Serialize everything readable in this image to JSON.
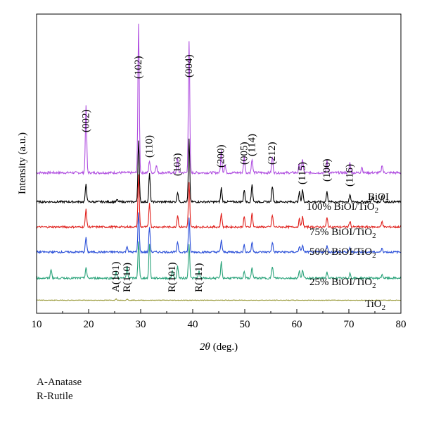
{
  "chart_data": {
    "type": "line",
    "title": "",
    "xlabel_symbol": "2θ",
    "xlabel_unit": "(deg.)",
    "ylabel": "Intensity (a.u.)",
    "xlim": [
      10,
      80
    ],
    "x_ticks": [
      10,
      20,
      30,
      40,
      50,
      60,
      70,
      80
    ],
    "grid": false,
    "series": [
      {
        "name": "BiOI",
        "label_main": "BiOI",
        "label_sub": "",
        "color": "#b04fe0",
        "baseline": 7.0,
        "noise": 0.06,
        "peaks": [
          [
            19.5,
            3.3
          ],
          [
            29.6,
            7.4
          ],
          [
            31.7,
            0.6
          ],
          [
            33.0,
            0.4
          ],
          [
            37.1,
            0.7
          ],
          [
            39.3,
            6.5
          ],
          [
            45.5,
            1.1
          ],
          [
            46.2,
            0.4
          ],
          [
            49.9,
            0.8
          ],
          [
            51.4,
            0.7
          ],
          [
            55.3,
            0.8
          ],
          [
            60.5,
            0.5
          ],
          [
            61.1,
            0.7
          ],
          [
            65.8,
            0.6
          ],
          [
            70.2,
            0.5
          ],
          [
            72.5,
            0.3
          ],
          [
            76.4,
            0.4
          ]
        ]
      },
      {
        "name": "100% BiOI/TiO2",
        "label_main": "100% BiOI/TiO",
        "label_sub": "2",
        "color": "#000000",
        "baseline": 5.55,
        "noise": 0.05,
        "peaks": [
          [
            19.5,
            0.9
          ],
          [
            25.5,
            0.1
          ],
          [
            29.6,
            3.1
          ],
          [
            31.7,
            1.4
          ],
          [
            37.1,
            0.5
          ],
          [
            39.3,
            3.1
          ],
          [
            45.5,
            0.7
          ],
          [
            49.9,
            0.6
          ],
          [
            51.4,
            0.9
          ],
          [
            55.3,
            0.8
          ],
          [
            60.5,
            0.5
          ],
          [
            61.1,
            0.6
          ],
          [
            65.8,
            0.5
          ],
          [
            70.2,
            0.35
          ],
          [
            74.5,
            0.25
          ],
          [
            76.4,
            0.35
          ]
        ]
      },
      {
        "name": "75% BiOI/TiO2",
        "label_main": "75% BiOI/TiO",
        "label_sub": "2",
        "color": "#e0201c",
        "baseline": 4.3,
        "noise": 0.05,
        "peaks": [
          [
            19.5,
            0.9
          ],
          [
            29.6,
            2.6
          ],
          [
            31.7,
            1.2
          ],
          [
            37.1,
            0.6
          ],
          [
            39.3,
            2.2
          ],
          [
            45.5,
            0.7
          ],
          [
            49.9,
            0.5
          ],
          [
            51.4,
            0.7
          ],
          [
            55.3,
            0.6
          ],
          [
            60.5,
            0.4
          ],
          [
            61.1,
            0.5
          ],
          [
            65.8,
            0.45
          ],
          [
            70.2,
            0.3
          ],
          [
            76.4,
            0.3
          ]
        ]
      },
      {
        "name": "50% BiOI/TiO2",
        "label_main": "50% BiOI/TiO",
        "label_sub": "2",
        "color": "#2a4fd8",
        "baseline": 3.05,
        "noise": 0.05,
        "peaks": [
          [
            19.5,
            0.75
          ],
          [
            27.4,
            0.3
          ],
          [
            29.6,
            2.0
          ],
          [
            31.7,
            1.25
          ],
          [
            37.1,
            0.5
          ],
          [
            39.3,
            1.7
          ],
          [
            45.5,
            0.6
          ],
          [
            49.9,
            0.35
          ],
          [
            51.4,
            0.5
          ],
          [
            55.3,
            0.5
          ],
          [
            60.5,
            0.3
          ],
          [
            61.1,
            0.35
          ],
          [
            65.8,
            0.35
          ],
          [
            70.2,
            0.2
          ],
          [
            76.4,
            0.2
          ]
        ]
      },
      {
        "name": "25% BiOI/TiO2",
        "label_main": "25% BiOI/TiO",
        "label_sub": "2",
        "color": "#2aa37a",
        "baseline": 1.75,
        "noise": 0.05,
        "peaks": [
          [
            12.8,
            0.45
          ],
          [
            19.5,
            0.55
          ],
          [
            25.3,
            0.3
          ],
          [
            27.4,
            0.6
          ],
          [
            29.6,
            1.8
          ],
          [
            31.7,
            1.7
          ],
          [
            36.1,
            0.4
          ],
          [
            37.1,
            0.6
          ],
          [
            39.3,
            1.7
          ],
          [
            41.2,
            0.35
          ],
          [
            45.5,
            0.8
          ],
          [
            49.9,
            0.35
          ],
          [
            51.4,
            0.55
          ],
          [
            55.3,
            0.6
          ],
          [
            60.5,
            0.35
          ],
          [
            61.1,
            0.4
          ],
          [
            65.8,
            0.3
          ],
          [
            70.2,
            0.25
          ],
          [
            76.4,
            0.2
          ]
        ]
      },
      {
        "name": "TiO2",
        "label_main": "TiO",
        "label_sub": "2",
        "color": "#9a9a3a",
        "baseline": 0.65,
        "noise": 0.015,
        "peaks": [
          [
            25.3,
            0.07
          ],
          [
            27.4,
            0.05
          ]
        ]
      }
    ],
    "peak_labels": [
      {
        "text": "(002)",
        "x": 19.5
      },
      {
        "text": "(102)",
        "x": 29.6
      },
      {
        "text": "(110)",
        "x": 31.7
      },
      {
        "text": "(004)",
        "x": 39.3
      },
      {
        "text": "(103)",
        "x": 37.1
      },
      {
        "text": "(200)",
        "x": 45.5
      },
      {
        "text": "(005)",
        "x": 49.9
      },
      {
        "text": "(114)",
        "x": 51.4
      },
      {
        "text": "(212)",
        "x": 55.3
      },
      {
        "text": "(115)",
        "x": 61.1
      },
      {
        "text": "(106)",
        "x": 65.8
      },
      {
        "text": "(116)",
        "x": 70.2
      },
      {
        "text": "A(101)",
        "x": 25.3
      },
      {
        "text": "R(110)",
        "x": 27.4
      },
      {
        "text": "R(101)",
        "x": 36.1
      },
      {
        "text": "R(111)",
        "x": 41.2
      }
    ]
  },
  "notes": [
    "A-Anatase",
    "R-Rutile"
  ]
}
